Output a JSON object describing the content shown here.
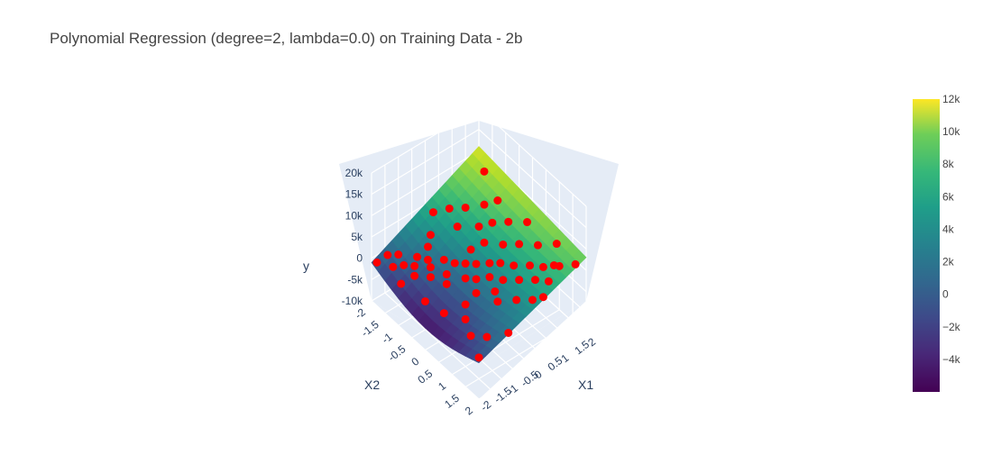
{
  "chart_data": {
    "type": "surface3d",
    "title": "Polynomial Regression (degree=2, lambda=0.0) on Training Data - 2b",
    "axes": {
      "x": {
        "label": "X1",
        "ticks": [
          "2",
          "1.5",
          "1",
          "0.5",
          "0",
          "-0.5",
          "-1",
          "-1.5",
          "-2"
        ]
      },
      "y": {
        "label": "X2",
        "ticks": [
          "-2",
          "-1.5",
          "-1",
          "-0.5",
          "0",
          "0.5",
          "1",
          "1.5",
          "2"
        ]
      },
      "z": {
        "label": "y",
        "ticks": [
          "20k",
          "15k",
          "10k",
          "5k",
          "0",
          "-5k",
          "-10k"
        ],
        "range": [
          -10000,
          20000
        ]
      }
    },
    "colorbar": {
      "colorscale": "Viridis",
      "range": [
        -6000,
        12000
      ],
      "ticks": [
        "12k",
        "10k",
        "8k",
        "6k",
        "4k",
        "2k",
        "0",
        "−2k",
        "−4k"
      ]
    },
    "surface": {
      "corners": [
        {
          "x1": -2,
          "x2": -2,
          "y": -1000
        },
        {
          "x1": 2,
          "x2": -2,
          "y": -1500
        },
        {
          "x1": 2,
          "x2": 2,
          "y": 8000
        },
        {
          "x1": -2,
          "x2": 2,
          "y": 11000
        }
      ],
      "valley_y": -6000
    },
    "scatter_color": "#ff0000",
    "points": [
      {
        "x1": -1.8,
        "x2": -1.6,
        "y": 400
      },
      {
        "x1": -1.6,
        "x2": -1.4,
        "y": 900
      },
      {
        "x1": -1.5,
        "x2": -1.7,
        "y": -300
      },
      {
        "x1": -1.3,
        "x2": -1.5,
        "y": 500
      },
      {
        "x1": -1.2,
        "x2": -1.1,
        "y": 1500
      },
      {
        "x1": -1.1,
        "x2": -1.3,
        "y": 700
      },
      {
        "x1": -1.0,
        "x2": -0.9,
        "y": 1200
      },
      {
        "x1": -0.9,
        "x2": -1.5,
        "y": 300
      },
      {
        "x1": -0.8,
        "x2": -1.0,
        "y": 1000
      },
      {
        "x1": -0.7,
        "x2": -0.6,
        "y": 1800
      },
      {
        "x1": -0.6,
        "x2": -1.2,
        "y": 600
      },
      {
        "x1": -0.5,
        "x2": -0.4,
        "y": 1400
      },
      {
        "x1": -0.4,
        "x2": -0.8,
        "y": 900
      },
      {
        "x1": -0.3,
        "x2": -0.2,
        "y": 1700
      },
      {
        "x1": -0.2,
        "x2": -1.0,
        "y": 500
      },
      {
        "x1": -0.1,
        "x2": 0.0,
        "y": 2000
      },
      {
        "x1": 0.0,
        "x2": -0.5,
        "y": 1100
      },
      {
        "x1": 0.1,
        "x2": 0.3,
        "y": 2200
      },
      {
        "x1": 0.2,
        "x2": -0.3,
        "y": 1300
      },
      {
        "x1": 0.3,
        "x2": 0.5,
        "y": 2600
      },
      {
        "x1": 0.4,
        "x2": 0.0,
        "y": 1800
      },
      {
        "x1": 0.5,
        "x2": -0.6,
        "y": 900
      },
      {
        "x1": 0.6,
        "x2": 0.7,
        "y": 3000
      },
      {
        "x1": 0.7,
        "x2": 0.2,
        "y": 2100
      },
      {
        "x1": 0.8,
        "x2": -0.2,
        "y": 1500
      },
      {
        "x1": 0.9,
        "x2": 1.0,
        "y": 3600
      },
      {
        "x1": 1.0,
        "x2": 0.5,
        "y": 2700
      },
      {
        "x1": 1.1,
        "x2": -0.4,
        "y": 1600
      },
      {
        "x1": 1.2,
        "x2": 1.2,
        "y": 4200
      },
      {
        "x1": 1.3,
        "x2": 0.8,
        "y": 3300
      },
      {
        "x1": 1.4,
        "x2": 0.0,
        "y": 2200
      },
      {
        "x1": 1.5,
        "x2": 1.5,
        "y": 5000
      },
      {
        "x1": 1.6,
        "x2": 1.0,
        "y": 3900
      },
      {
        "x1": 1.7,
        "x2": 0.3,
        "y": 2800
      },
      {
        "x1": 1.8,
        "x2": 1.8,
        "y": 6000
      },
      {
        "x1": -1.9,
        "x2": 0.2,
        "y": 3000
      },
      {
        "x1": -1.7,
        "x2": 0.6,
        "y": 3500
      },
      {
        "x1": -1.4,
        "x2": 0.9,
        "y": 4300
      },
      {
        "x1": -1.1,
        "x2": 1.3,
        "y": 5200
      },
      {
        "x1": -0.9,
        "x2": 1.6,
        "y": 6200
      },
      {
        "x1": -0.6,
        "x2": 1.1,
        "y": 4600
      },
      {
        "x1": -0.3,
        "x2": 1.4,
        "y": 5400
      },
      {
        "x1": 0.1,
        "x2": 1.7,
        "y": 6500
      },
      {
        "x1": -1.5,
        "x2": -0.3,
        "y": 1900
      },
      {
        "x1": -1.2,
        "x2": 0.4,
        "y": 2900
      },
      {
        "x1": -0.8,
        "x2": 0.8,
        "y": 3700
      },
      {
        "x1": -0.4,
        "x2": 0.6,
        "y": 3000
      },
      {
        "x1": 0.3,
        "x2": 1.2,
        "y": 4400
      },
      {
        "x1": 0.7,
        "x2": 1.5,
        "y": 5300
      },
      {
        "x1": 1.1,
        "x2": 1.8,
        "y": 6800
      },
      {
        "x1": -1.9,
        "x2": -1.9,
        "y": -800
      },
      {
        "x1": 1.9,
        "x2": -1.9,
        "y": -1200
      },
      {
        "x1": 1.6,
        "x2": -1.3,
        "y": -400
      },
      {
        "x1": 1.3,
        "x2": -1.6,
        "y": -700
      },
      {
        "x1": 0.9,
        "x2": -1.4,
        "y": 100
      },
      {
        "x1": 0.4,
        "x2": -1.7,
        "y": -200
      },
      {
        "x1": -0.2,
        "x2": -1.8,
        "y": -500
      },
      {
        "x1": -1.0,
        "x2": -1.9,
        "y": -600
      },
      {
        "x1": 1.9,
        "x2": -0.8,
        "y": 400
      },
      {
        "x1": 1.8,
        "x2": 0.6,
        "y": 2900
      },
      {
        "x1": -1.6,
        "x2": 1.8,
        "y": 8200
      },
      {
        "x1": -1.3,
        "x2": -0.6,
        "y": 1400
      },
      {
        "x1": 0.6,
        "x2": -1.1,
        "y": 700
      },
      {
        "x1": 0.0,
        "x2": 0.9,
        "y": 3700
      },
      {
        "x1": -0.5,
        "x2": 0.2,
        "y": 2300
      },
      {
        "x1": 1.4,
        "x2": 1.4,
        "y": 5000
      }
    ]
  }
}
